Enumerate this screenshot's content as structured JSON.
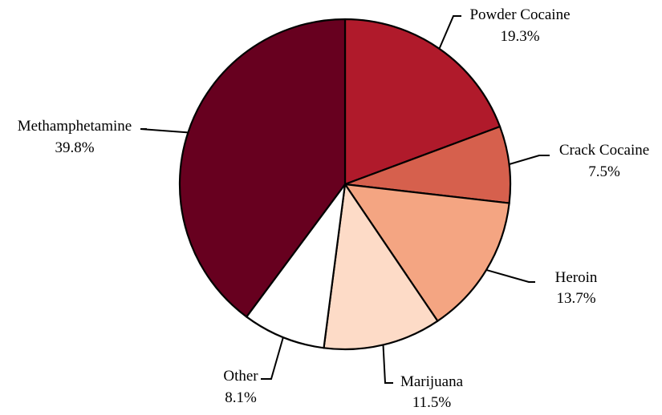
{
  "chart_data": {
    "type": "pie",
    "title": "",
    "start_angle_deg": 0,
    "direction": "clockwise",
    "slices": [
      {
        "label": "Powder Cocaine",
        "value": 19.3,
        "display": "19.3%",
        "color": "#b01a2b"
      },
      {
        "label": "Crack Cocaine",
        "value": 7.5,
        "display": "7.5%",
        "color": "#d6604d"
      },
      {
        "label": "Heroin",
        "value": 13.7,
        "display": "13.7%",
        "color": "#f4a582"
      },
      {
        "label": "Marijuana",
        "value": 11.5,
        "display": "11.5%",
        "color": "#fddbc7"
      },
      {
        "label": "Other",
        "value": 8.1,
        "display": "8.1%",
        "color": "#ffffff"
      },
      {
        "label": "Methamphetamine",
        "value": 39.8,
        "display": "39.8%",
        "color": "#67001f"
      }
    ]
  }
}
